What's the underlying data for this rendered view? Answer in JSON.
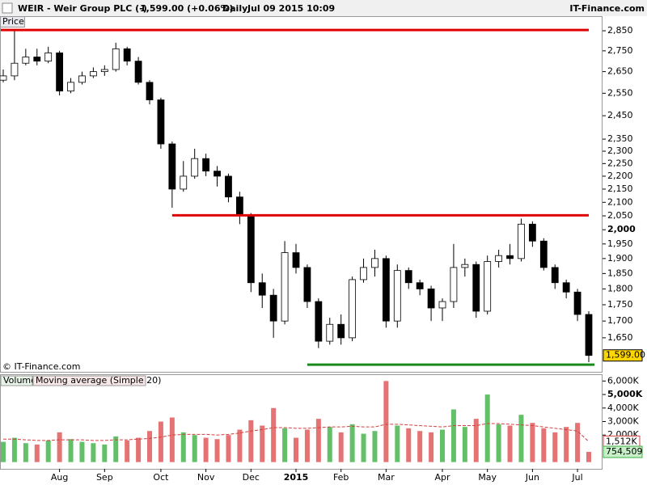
{
  "header": {
    "symbol": "WEIR - Weir Group PLC (-)",
    "quote": "1,599.00 (+0.06%)",
    "interval": "Daily",
    "timestamp": "Jul 09 2015 10:09",
    "brand": "IT-Finance.com",
    "copyright": "© IT-Finance.com",
    "panel_tab": "Price"
  },
  "chart_data": [
    {
      "type": "candlestick",
      "log": true,
      "ylim": [
        1553,
        2925
      ],
      "yticks": [
        {
          "value": 2850,
          "label": "2,850"
        },
        {
          "value": 2750,
          "label": "2,750"
        },
        {
          "value": 2650,
          "label": "2,650"
        },
        {
          "value": 2550,
          "label": "2,550"
        },
        {
          "value": 2450,
          "label": "2,450"
        },
        {
          "value": 2350,
          "label": "2,350"
        },
        {
          "value": 2300,
          "label": "2,300"
        },
        {
          "value": 2250,
          "label": "2,250"
        },
        {
          "value": 2200,
          "label": "2,200"
        },
        {
          "value": 2150,
          "label": "2,150"
        },
        {
          "value": 2100,
          "label": "2,100"
        },
        {
          "value": 2050,
          "label": "2,050"
        },
        {
          "value": 2000,
          "label": "2,000"
        },
        {
          "value": 1950,
          "label": "1,950"
        },
        {
          "value": 1900,
          "label": "1,900"
        },
        {
          "value": 1850,
          "label": "1,850"
        },
        {
          "value": 1800,
          "label": "1,800"
        },
        {
          "value": 1750,
          "label": "1,750"
        },
        {
          "value": 1700,
          "label": "1,700"
        },
        {
          "value": 1650,
          "label": "1,650"
        }
      ],
      "open": [
        2610,
        2630,
        2690,
        2720,
        2700,
        2740,
        2560,
        2600,
        2630,
        2650,
        2660,
        2760,
        2700,
        2600,
        2520,
        2330,
        2150,
        2200,
        2270,
        2220,
        2200,
        2120,
        2050,
        1820,
        1780,
        1700,
        1920,
        1870,
        1760,
        1640,
        1690,
        1650,
        1830,
        1870,
        1900,
        1700,
        1860,
        1820,
        1800,
        1740,
        1760,
        1870,
        1880,
        1730,
        1890,
        1910,
        1900,
        2020,
        1960,
        1870,
        1820,
        1790,
        1720
      ],
      "high": [
        2660,
        2850,
        2760,
        2760,
        2770,
        2750,
        2620,
        2650,
        2670,
        2680,
        2790,
        2770,
        2720,
        2610,
        2530,
        2340,
        2260,
        2310,
        2290,
        2240,
        2210,
        2140,
        2060,
        1850,
        1800,
        1960,
        1950,
        1880,
        1770,
        1710,
        1720,
        1840,
        1900,
        1930,
        1910,
        1880,
        1870,
        1830,
        1810,
        1770,
        1950,
        1900,
        1890,
        1910,
        1930,
        1950,
        2040,
        2030,
        1970,
        1880,
        1830,
        1800,
        1730
      ],
      "low": [
        2600,
        2610,
        2680,
        2680,
        2690,
        2540,
        2550,
        2590,
        2620,
        2630,
        2650,
        2680,
        2590,
        2500,
        2310,
        2080,
        2140,
        2190,
        2200,
        2160,
        2100,
        2020,
        1790,
        1740,
        1650,
        1690,
        1850,
        1740,
        1620,
        1630,
        1630,
        1640,
        1820,
        1840,
        1680,
        1680,
        1800,
        1780,
        1700,
        1700,
        1740,
        1840,
        1710,
        1720,
        1870,
        1880,
        1890,
        1940,
        1860,
        1800,
        1770,
        1700,
        1580
      ],
      "close": [
        2630,
        2690,
        2720,
        2700,
        2740,
        2560,
        2600,
        2630,
        2650,
        2660,
        2760,
        2700,
        2600,
        2520,
        2330,
        2150,
        2200,
        2270,
        2220,
        2200,
        2120,
        2050,
        1820,
        1780,
        1700,
        1920,
        1870,
        1760,
        1640,
        1690,
        1650,
        1830,
        1870,
        1900,
        1700,
        1860,
        1820,
        1800,
        1740,
        1760,
        1870,
        1880,
        1730,
        1890,
        1910,
        1900,
        2020,
        1960,
        1870,
        1820,
        1790,
        1720,
        1599
      ],
      "last_label": "1,599.00",
      "lines": [
        {
          "value": 2854,
          "color": "#e00000",
          "start": 0
        },
        {
          "value": 2052,
          "color": "#e00000",
          "start": 15
        },
        {
          "value": 1573,
          "color": "#1a8a1a",
          "start": 27
        }
      ]
    },
    {
      "type": "bar",
      "ylim": [
        -500000,
        6500000
      ],
      "categories": [
        null,
        null,
        null,
        null,
        null,
        "Aug",
        null,
        null,
        null,
        "Sep",
        null,
        null,
        null,
        null,
        "Oct",
        null,
        null,
        null,
        "Nov",
        null,
        null,
        null,
        "Dec",
        null,
        null,
        null,
        "2015",
        null,
        null,
        null,
        "Feb",
        null,
        null,
        null,
        "Mar",
        null,
        null,
        null,
        null,
        "Apr",
        null,
        null,
        null,
        "May",
        null,
        null,
        null,
        "Jun",
        null,
        null,
        null,
        "Jul",
        null
      ],
      "yticks": [
        {
          "value": 6000000,
          "label": "6,000K"
        },
        {
          "value": 5000000,
          "label": "5,000K"
        },
        {
          "value": 4000000,
          "label": "4,000K"
        },
        {
          "value": 3000000,
          "label": "3,000K"
        },
        {
          "value": 2000000,
          "label": "2,000K"
        }
      ],
      "series": [
        {
          "name": "Volume",
          "color": "#3cb043",
          "down_color": "#e05050",
          "values": [
            1500000,
            1800000,
            1400000,
            1300000,
            1600000,
            2200000,
            1700000,
            1500000,
            1400000,
            1300000,
            1900000,
            1600000,
            1800000,
            2300000,
            3000000,
            3300000,
            2200000,
            2000000,
            1800000,
            1700000,
            2000000,
            2400000,
            3100000,
            2700000,
            4000000,
            2500000,
            1800000,
            2400000,
            3200000,
            2600000,
            2200000,
            2800000,
            2100000,
            2300000,
            6000000,
            2700000,
            2500000,
            2300000,
            2200000,
            2400000,
            3900000,
            2600000,
            3200000,
            5000000,
            2800000,
            2700000,
            3500000,
            2900000,
            2500000,
            2200000,
            2600000,
            2900000,
            754509
          ],
          "last_label": "754,509"
        },
        {
          "name": "Moving average (Simple 20)",
          "color": "#d04040",
          "values": [
            1700000,
            1700000,
            1650000,
            1600000,
            1600000,
            1650000,
            1650000,
            1650000,
            1600000,
            1600000,
            1650000,
            1650000,
            1700000,
            1750000,
            1850000,
            2000000,
            2050000,
            2050000,
            2050000,
            2000000,
            2050000,
            2150000,
            2300000,
            2400000,
            2550000,
            2550000,
            2500000,
            2500000,
            2550000,
            2600000,
            2600000,
            2650000,
            2600000,
            2600000,
            2800000,
            2800000,
            2750000,
            2700000,
            2650000,
            2600000,
            2700000,
            2700000,
            2700000,
            2850000,
            2850000,
            2800000,
            2750000,
            2700000,
            2600000,
            2500000,
            2400000,
            2300000,
            1512000
          ],
          "last_label": "1,512K"
        }
      ]
    }
  ]
}
